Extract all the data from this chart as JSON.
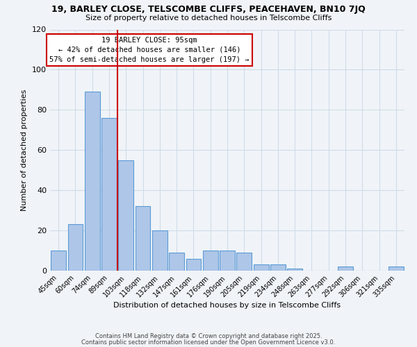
{
  "title1": "19, BARLEY CLOSE, TELSCOMBE CLIFFS, PEACEHAVEN, BN10 7JQ",
  "title2": "Size of property relative to detached houses in Telscombe Cliffs",
  "xlabel": "Distribution of detached houses by size in Telscombe Cliffs",
  "ylabel": "Number of detached properties",
  "bar_labels": [
    "45sqm",
    "60sqm",
    "74sqm",
    "89sqm",
    "103sqm",
    "118sqm",
    "132sqm",
    "147sqm",
    "161sqm",
    "176sqm",
    "190sqm",
    "205sqm",
    "219sqm",
    "234sqm",
    "248sqm",
    "263sqm",
    "277sqm",
    "292sqm",
    "306sqm",
    "321sqm",
    "335sqm"
  ],
  "bar_values": [
    10,
    23,
    89,
    76,
    55,
    32,
    20,
    9,
    6,
    10,
    10,
    9,
    3,
    3,
    1,
    0,
    0,
    2,
    0,
    0,
    2
  ],
  "bar_color": "#aec6e8",
  "bar_edge_color": "#5b9bd5",
  "vline_color": "#cc0000",
  "annotation_title": "19 BARLEY CLOSE: 95sqm",
  "annotation_line1": "← 42% of detached houses are smaller (146)",
  "annotation_line2": "57% of semi-detached houses are larger (197) →",
  "annotation_box_color": "#ffffff",
  "annotation_box_edge": "#cc0000",
  "ylim": [
    0,
    120
  ],
  "yticks": [
    0,
    20,
    40,
    60,
    80,
    100,
    120
  ],
  "grid_color": "#d0dce8",
  "bg_color": "#f0f4f8",
  "footer1": "Contains HM Land Registry data © Crown copyright and database right 2025.",
  "footer2": "Contains public sector information licensed under the Open Government Licence v3.0."
}
